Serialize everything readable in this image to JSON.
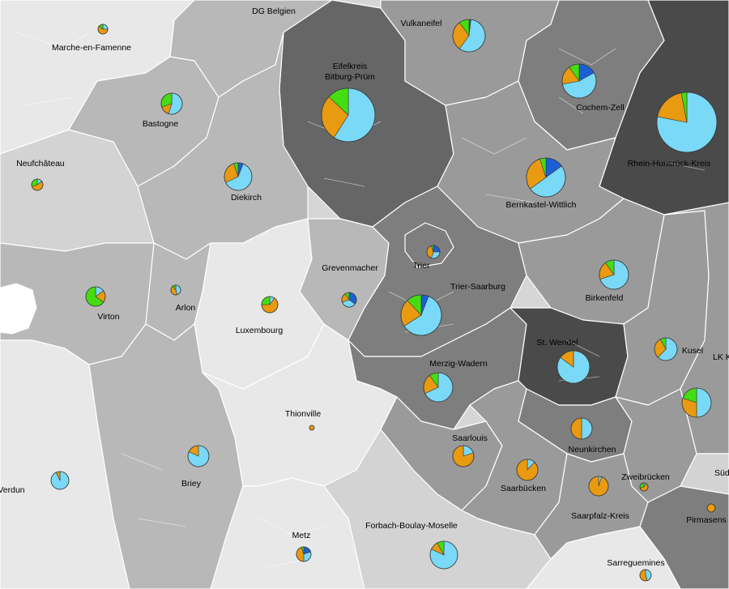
{
  "colors": {
    "pv": "#79d9f6",
    "wind": "#e89a10",
    "biomass": "#44dd11",
    "hydro": "#1a5fd6",
    "border": "#ffffff",
    "shade_1": "#e8e8e8",
    "shade_2": "#d3d3d3",
    "shade_3": "#b8b8b8",
    "shade_4": "#9a9a9a",
    "shade_5": "#7e7e7e",
    "shade_6": "#666666",
    "shade_7": "#4a4a4a"
  },
  "regions": [
    {
      "id": "marche-en-famenne",
      "shade": "shade_1"
    },
    {
      "id": "neufchateau",
      "shade": "shade_2"
    },
    {
      "id": "bastogne",
      "shade": "shade_3"
    },
    {
      "id": "dg-belgien",
      "shade": "shade_3"
    },
    {
      "id": "eifelkreis-bitburg-pruem",
      "shade": "shade_6"
    },
    {
      "id": "vulkaneifel",
      "shade": "shade_4"
    },
    {
      "id": "cochem-zell",
      "shade": "shade_5"
    },
    {
      "id": "rhein-hunsrueck-kreis",
      "shade": "shade_7"
    },
    {
      "id": "bernkastel-wittlich",
      "shade": "shade_4"
    },
    {
      "id": "diekirch",
      "shade": "shade_3"
    },
    {
      "id": "virton",
      "shade": "shade_3"
    },
    {
      "id": "arlon",
      "shade": "shade_3"
    },
    {
      "id": "luxembourg",
      "shade": "shade_1"
    },
    {
      "id": "grevenmacher",
      "shade": "shade_3"
    },
    {
      "id": "trier-saarburg",
      "shade": "shade_5"
    },
    {
      "id": "trier",
      "shade": "shade_5"
    },
    {
      "id": "birkenfeld",
      "shade": "shade_4"
    },
    {
      "id": "merzig-wadern",
      "shade": "shade_5"
    },
    {
      "id": "st-wendel",
      "shade": "shade_7"
    },
    {
      "id": "kusel",
      "shade": "shade_4"
    },
    {
      "id": "lk-k",
      "shade": "shade_4"
    },
    {
      "id": "verdun",
      "shade": "shade_1"
    },
    {
      "id": "briey",
      "shade": "shade_3"
    },
    {
      "id": "thionville",
      "shade": "shade_1"
    },
    {
      "id": "saarlouis",
      "shade": "shade_4"
    },
    {
      "id": "neunkirchen",
      "shade": "shade_5"
    },
    {
      "id": "saarbruecken",
      "shade": "shade_4"
    },
    {
      "id": "zweibruecken",
      "shade": "shade_4"
    },
    {
      "id": "saarpfalz-kreis",
      "shade": "shade_4"
    },
    {
      "id": "sued",
      "shade": "shade_2"
    },
    {
      "id": "pirmasens",
      "shade": "shade_5"
    },
    {
      "id": "metz",
      "shade": "shade_1"
    },
    {
      "id": "forbach-boulay-moselle",
      "shade": "shade_2"
    },
    {
      "id": "sarreguemines",
      "shade": "shade_1"
    }
  ],
  "labels": [
    {
      "text": "DG Belgien"
    },
    {
      "text": "Vulkaneifel"
    },
    {
      "text": "Marche-en-Famenne"
    },
    {
      "text": "Eifelkreis"
    },
    {
      "text": "Bitburg-Prüm"
    },
    {
      "text": "Cochem-Zell"
    },
    {
      "text": "Bastogne"
    },
    {
      "text": "Rhein-Hunsrück-Kreis"
    },
    {
      "text": "Neufchâteau"
    },
    {
      "text": "Diekirch"
    },
    {
      "text": "Bernkastel-Wittlich"
    },
    {
      "text": "Grevenmacher"
    },
    {
      "text": "Trier"
    },
    {
      "text": "Trier-Saarburg"
    },
    {
      "text": "Arlon"
    },
    {
      "text": "Virton"
    },
    {
      "text": "Birkenfeld"
    },
    {
      "text": "Luxembourg"
    },
    {
      "text": "St. Wendel"
    },
    {
      "text": "Kusel"
    },
    {
      "text": "LK K"
    },
    {
      "text": "Merzig-Wadern"
    },
    {
      "text": "Thionville"
    },
    {
      "text": "Saarlouis"
    },
    {
      "text": "Neunkirchen"
    },
    {
      "text": "Zweibrücken"
    },
    {
      "text": "Verdun"
    },
    {
      "text": "Briey"
    },
    {
      "text": "Saarbücken"
    },
    {
      "text": "Süd"
    },
    {
      "text": "Saarpfalz-Kreis"
    },
    {
      "text": "Pirmasens"
    },
    {
      "text": "Forbach-Boulay-Moselle"
    },
    {
      "text": "Metz"
    },
    {
      "text": "Sarreguemines"
    }
  ],
  "pies": [
    {
      "region": "marche-en-famenne",
      "shares": {
        "pv": 0.25,
        "wind": 0.6,
        "biomass": 0.15,
        "hydro": 0
      }
    },
    {
      "region": "vulkaneifel",
      "shares": {
        "pv": 0.58,
        "wind": 0.3,
        "biomass": 0.1,
        "hydro": 0.02
      }
    },
    {
      "region": "eifelkreis-bitburg-pruem",
      "shares": {
        "pv": 0.59,
        "wind": 0.28,
        "biomass": 0.13,
        "hydro": 0
      }
    },
    {
      "region": "cochem-zell",
      "shares": {
        "pv": 0.55,
        "wind": 0.18,
        "biomass": 0.1,
        "hydro": 0.17
      }
    },
    {
      "region": "rhein-hunsrueck-kreis",
      "shares": {
        "pv": 0.78,
        "wind": 0.19,
        "biomass": 0.03,
        "hydro": 0
      }
    },
    {
      "region": "bastogne",
      "shares": {
        "pv": 0.55,
        "wind": 0.15,
        "biomass": 0.3,
        "hydro": 0
      }
    },
    {
      "region": "neufchateau",
      "shares": {
        "pv": 0.15,
        "wind": 0.55,
        "biomass": 0.3,
        "hydro": 0
      }
    },
    {
      "region": "diekirch",
      "shares": {
        "pv": 0.62,
        "wind": 0.27,
        "biomass": 0.05,
        "hydro": 0.06
      }
    },
    {
      "region": "bernkastel-wittlich",
      "shares": {
        "pv": 0.5,
        "wind": 0.3,
        "biomass": 0.05,
        "hydro": 0.15
      }
    },
    {
      "region": "grevenmacher",
      "shares": {
        "pv": 0.35,
        "wind": 0.2,
        "biomass": 0.1,
        "hydro": 0.35
      }
    },
    {
      "region": "trier",
      "shares": {
        "pv": 0.3,
        "wind": 0.4,
        "biomass": 0.05,
        "hydro": 0.25
      }
    },
    {
      "region": "trier-saarburg",
      "shares": {
        "pv": 0.6,
        "wind": 0.22,
        "biomass": 0.12,
        "hydro": 0.06
      }
    },
    {
      "region": "arlon",
      "shares": {
        "pv": 0.45,
        "wind": 0.45,
        "biomass": 0.1,
        "hydro": 0
      }
    },
    {
      "region": "virton",
      "shares": {
        "pv": 0.15,
        "wind": 0.2,
        "biomass": 0.65,
        "hydro": 0
      }
    },
    {
      "region": "birkenfeld",
      "shares": {
        "pv": 0.7,
        "wind": 0.2,
        "biomass": 0.1,
        "hydro": 0
      }
    },
    {
      "region": "luxembourg",
      "shares": {
        "pv": 0.1,
        "wind": 0.65,
        "biomass": 0.25,
        "hydro": 0
      }
    },
    {
      "region": "st-wendel",
      "shares": {
        "pv": 0.85,
        "wind": 0.15,
        "biomass": 0,
        "hydro": 0
      }
    },
    {
      "region": "kusel",
      "shares": {
        "pv": 0.62,
        "wind": 0.3,
        "biomass": 0.08,
        "hydro": 0
      }
    },
    {
      "region": "lk-k",
      "shares": {
        "pv": 0.5,
        "wind": 0.3,
        "biomass": 0.2,
        "hydro": 0
      }
    },
    {
      "region": "merzig-wadern",
      "shares": {
        "pv": 0.68,
        "wind": 0.22,
        "biomass": 0.1,
        "hydro": 0
      }
    },
    {
      "region": "thionville",
      "shares": {
        "pv": 0,
        "wind": 1,
        "biomass": 0,
        "hydro": 0
      }
    },
    {
      "region": "saarlouis",
      "shares": {
        "pv": 0.2,
        "wind": 0.8,
        "biomass": 0,
        "hydro": 0
      }
    },
    {
      "region": "neunkirchen",
      "shares": {
        "pv": 0.5,
        "wind": 0.5,
        "biomass": 0,
        "hydro": 0
      }
    },
    {
      "region": "zweibruecken",
      "shares": {
        "pv": 0.1,
        "wind": 0.6,
        "biomass": 0.3,
        "hydro": 0
      }
    },
    {
      "region": "verdun",
      "shares": {
        "pv": 0.93,
        "wind": 0.07,
        "biomass": 0,
        "hydro": 0
      }
    },
    {
      "region": "briey",
      "shares": {
        "pv": 0.82,
        "wind": 0.18,
        "biomass": 0,
        "hydro": 0
      }
    },
    {
      "region": "saarbruecken",
      "shares": {
        "pv": 0.12,
        "wind": 0.88,
        "biomass": 0,
        "hydro": 0
      }
    },
    {
      "region": "saarpfalz-kreis",
      "shares": {
        "pv": 0.05,
        "wind": 0.95,
        "biomass": 0,
        "hydro": 0
      }
    },
    {
      "region": "pirmasens",
      "shares": {
        "pv": 0,
        "wind": 1,
        "biomass": 0,
        "hydro": 0
      }
    },
    {
      "region": "forbach-boulay-moselle",
      "shares": {
        "pv": 0.82,
        "wind": 0.1,
        "biomass": 0.08,
        "hydro": 0
      }
    },
    {
      "region": "metz",
      "shares": {
        "pv": 0.3,
        "wind": 0.45,
        "biomass": 0.05,
        "hydro": 0.2
      }
    },
    {
      "region": "sarreguemines",
      "shares": {
        "pv": 0.45,
        "wind": 0.55,
        "biomass": 0,
        "hydro": 0
      }
    }
  ]
}
